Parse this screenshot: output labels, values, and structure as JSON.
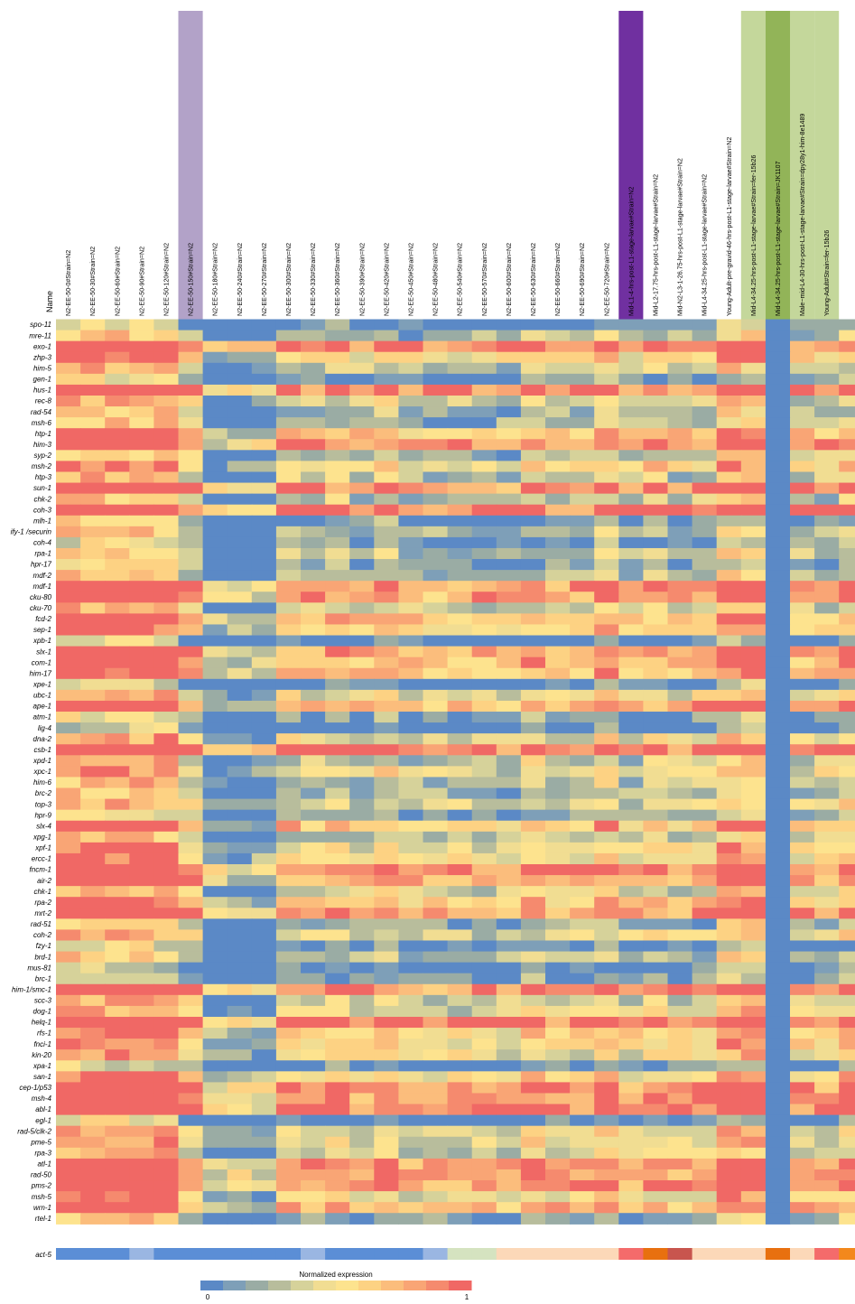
{
  "chart_data": {
    "type": "heatmap",
    "title": "",
    "corner_label": "Name",
    "legend": {
      "title": "Normalized expression",
      "min_label": "0",
      "max_label": "1",
      "colors": [
        "#5b89c6",
        "#7e9fb8",
        "#9aaca4",
        "#b8bd9c",
        "#d6d29a",
        "#f1dd92",
        "#fde38e",
        "#fdd283",
        "#fbbd7c",
        "#f9a575",
        "#f58a6e",
        "#f06865"
      ]
    },
    "columns": [
      "N2-EE-50-0#Strain=N2",
      "N2-EE-50-30#Strain=N2",
      "N2-EE-50-60#Strain=N2",
      "N2-EE-50-90#Strain=N2",
      "N2-EE-50-120#Strain=N2",
      "N2-EE-50-150#Strain=N2",
      "N2-EE-50-180#Strain=N2",
      "N2-EE-50-240#Strain=N2",
      "N2-EE-50-270#Strain=N2",
      "N2-EE-50-300#Strain=N2",
      "N2-EE-50-330#Strain=N2",
      "N2-EE-50-360#Strain=N2",
      "N2-EE-50-390#Strain=N2",
      "N2-EE-50-420#Strain=N2",
      "N2-EE-50-450#Strain=N2",
      "N2-EE-50-480#Strain=N2",
      "N2-EE-50-540#Strain=N2",
      "N2-EE-50-570#Strain=N2",
      "N2-EE-50-600#Strain=N2",
      "N2-EE-50-630#Strain=N2",
      "N2-EE-50-660#Strain=N2",
      "N2-EE-50-690#Strain=N2",
      "N2-EE-50-720#Strain=N2",
      "Mid-L1-4-hrs-post-L1-stage-larvae#Strain=N2",
      "Mid-L2-17.75-hrs-post-L1-stage-larvae#Strain=N2",
      "Mid-N2-L3-1-26.75-hrs-post-L1-stage-larvae#Strain=N2",
      "Mid-L4-34.25-hrs-post-L1-stage-larvae#Strain=N2",
      "Young-Adult-pre-gravid-46-hrs-post-L1-stage-larvae#Strain=N2",
      "Mid-L4-34.25-hrs-post-L1-stage-larvae#Strain=fer-15b26",
      "Mid-L4-34.25-hrs-post-L1-stage-larvae#Strain=JK1107",
      "Male~mid-L4-30-hrs-post-L1-stage-larvae#Strain=dpy28y1-him-8e1489",
      "Young-Adult#Strain=fer-15b26",
      ""
    ],
    "column_highlights": [
      {
        "column": 5,
        "color": "#b2a2c8"
      },
      {
        "column": 23,
        "color": "#7030a0"
      },
      {
        "column": 28,
        "color": "#c4d79b"
      },
      {
        "column": 29,
        "color": "#92b458"
      },
      {
        "column": 30,
        "color": "#c4d79b"
      },
      {
        "column": 31,
        "color": "#c4d79b"
      }
    ],
    "rows": [
      "spo-11",
      "mre-11",
      "exo-1",
      "zhp-3",
      "him-5",
      "gen-1",
      "hus-1",
      "rec-8",
      "rad-54",
      "msh-6",
      "htp-1",
      "him-3",
      "syp-2",
      "msh-2",
      "htp-3",
      "sun-1",
      "chk-2",
      "coh-3",
      "mlh-1",
      "ify-1 /securin",
      "coh-4",
      "rpa-1",
      "hpr-17",
      "mdf-2",
      "mdf-1",
      "cku-80",
      "cku-70",
      "fcd-2",
      "sep-1",
      "xpb-1",
      "slx-1",
      "com-1",
      "him-17",
      "xpe-1",
      "ubc-1",
      "ape-1",
      "atm-1",
      "lig-4",
      "dna-2",
      "csb-1",
      "xpd-1",
      "xpc-1",
      "him-6",
      "brc-2",
      "top-3",
      "hpr-9",
      "slx-4",
      "xpg-1",
      "xpf-1",
      "ercc-1",
      "fncm-1",
      "air-2",
      "chk-1",
      "rpa-2",
      "mrt-2",
      "rad-51",
      "coh-2",
      "fzy-1",
      "brd-1",
      "mus-81",
      "brc-1",
      "him-1/smc-1",
      "scc-3",
      "dog-1",
      "helq-1",
      "rfs-1",
      "fnci-1",
      "kin-20",
      "xpa-1",
      "san-1",
      "cep-1/p53",
      "msh-4",
      "abl-1",
      "egl-1",
      "rad-5/clk-2",
      "pme-5",
      "rpa-3",
      "atl-1",
      "rad-50",
      "pms-2",
      "msh-5",
      "wrn-1",
      "rtel-1"
    ],
    "reference_row": {
      "name": "act-5",
      "colors": [
        "#5b8ed6",
        "#5b8ed6",
        "#5b8ed6",
        "#9ab6e2",
        "#5b8ed6",
        "#5b8ed6",
        "#5b8ed6",
        "#5b8ed6",
        "#5b8ed6",
        "#5b8ed6",
        "#9ab6e2",
        "#5b8ed6",
        "#5b8ed6",
        "#5b8ed6",
        "#5b8ed6",
        "#9ab6e2",
        "#d5e3c0",
        "#d5e3c0",
        "#fcd8b8",
        "#fcd8b8",
        "#fcd8b8",
        "#fcd8b8",
        "#fcd8b8",
        "#f46b6b",
        "#e8700f",
        "#c8554e",
        "#fcd8b8",
        "#fcd8b8",
        "#fcd8b8",
        "#e8700f",
        "#fcd8b8",
        "#f46b6b",
        "#f3881c"
      ]
    }
  }
}
